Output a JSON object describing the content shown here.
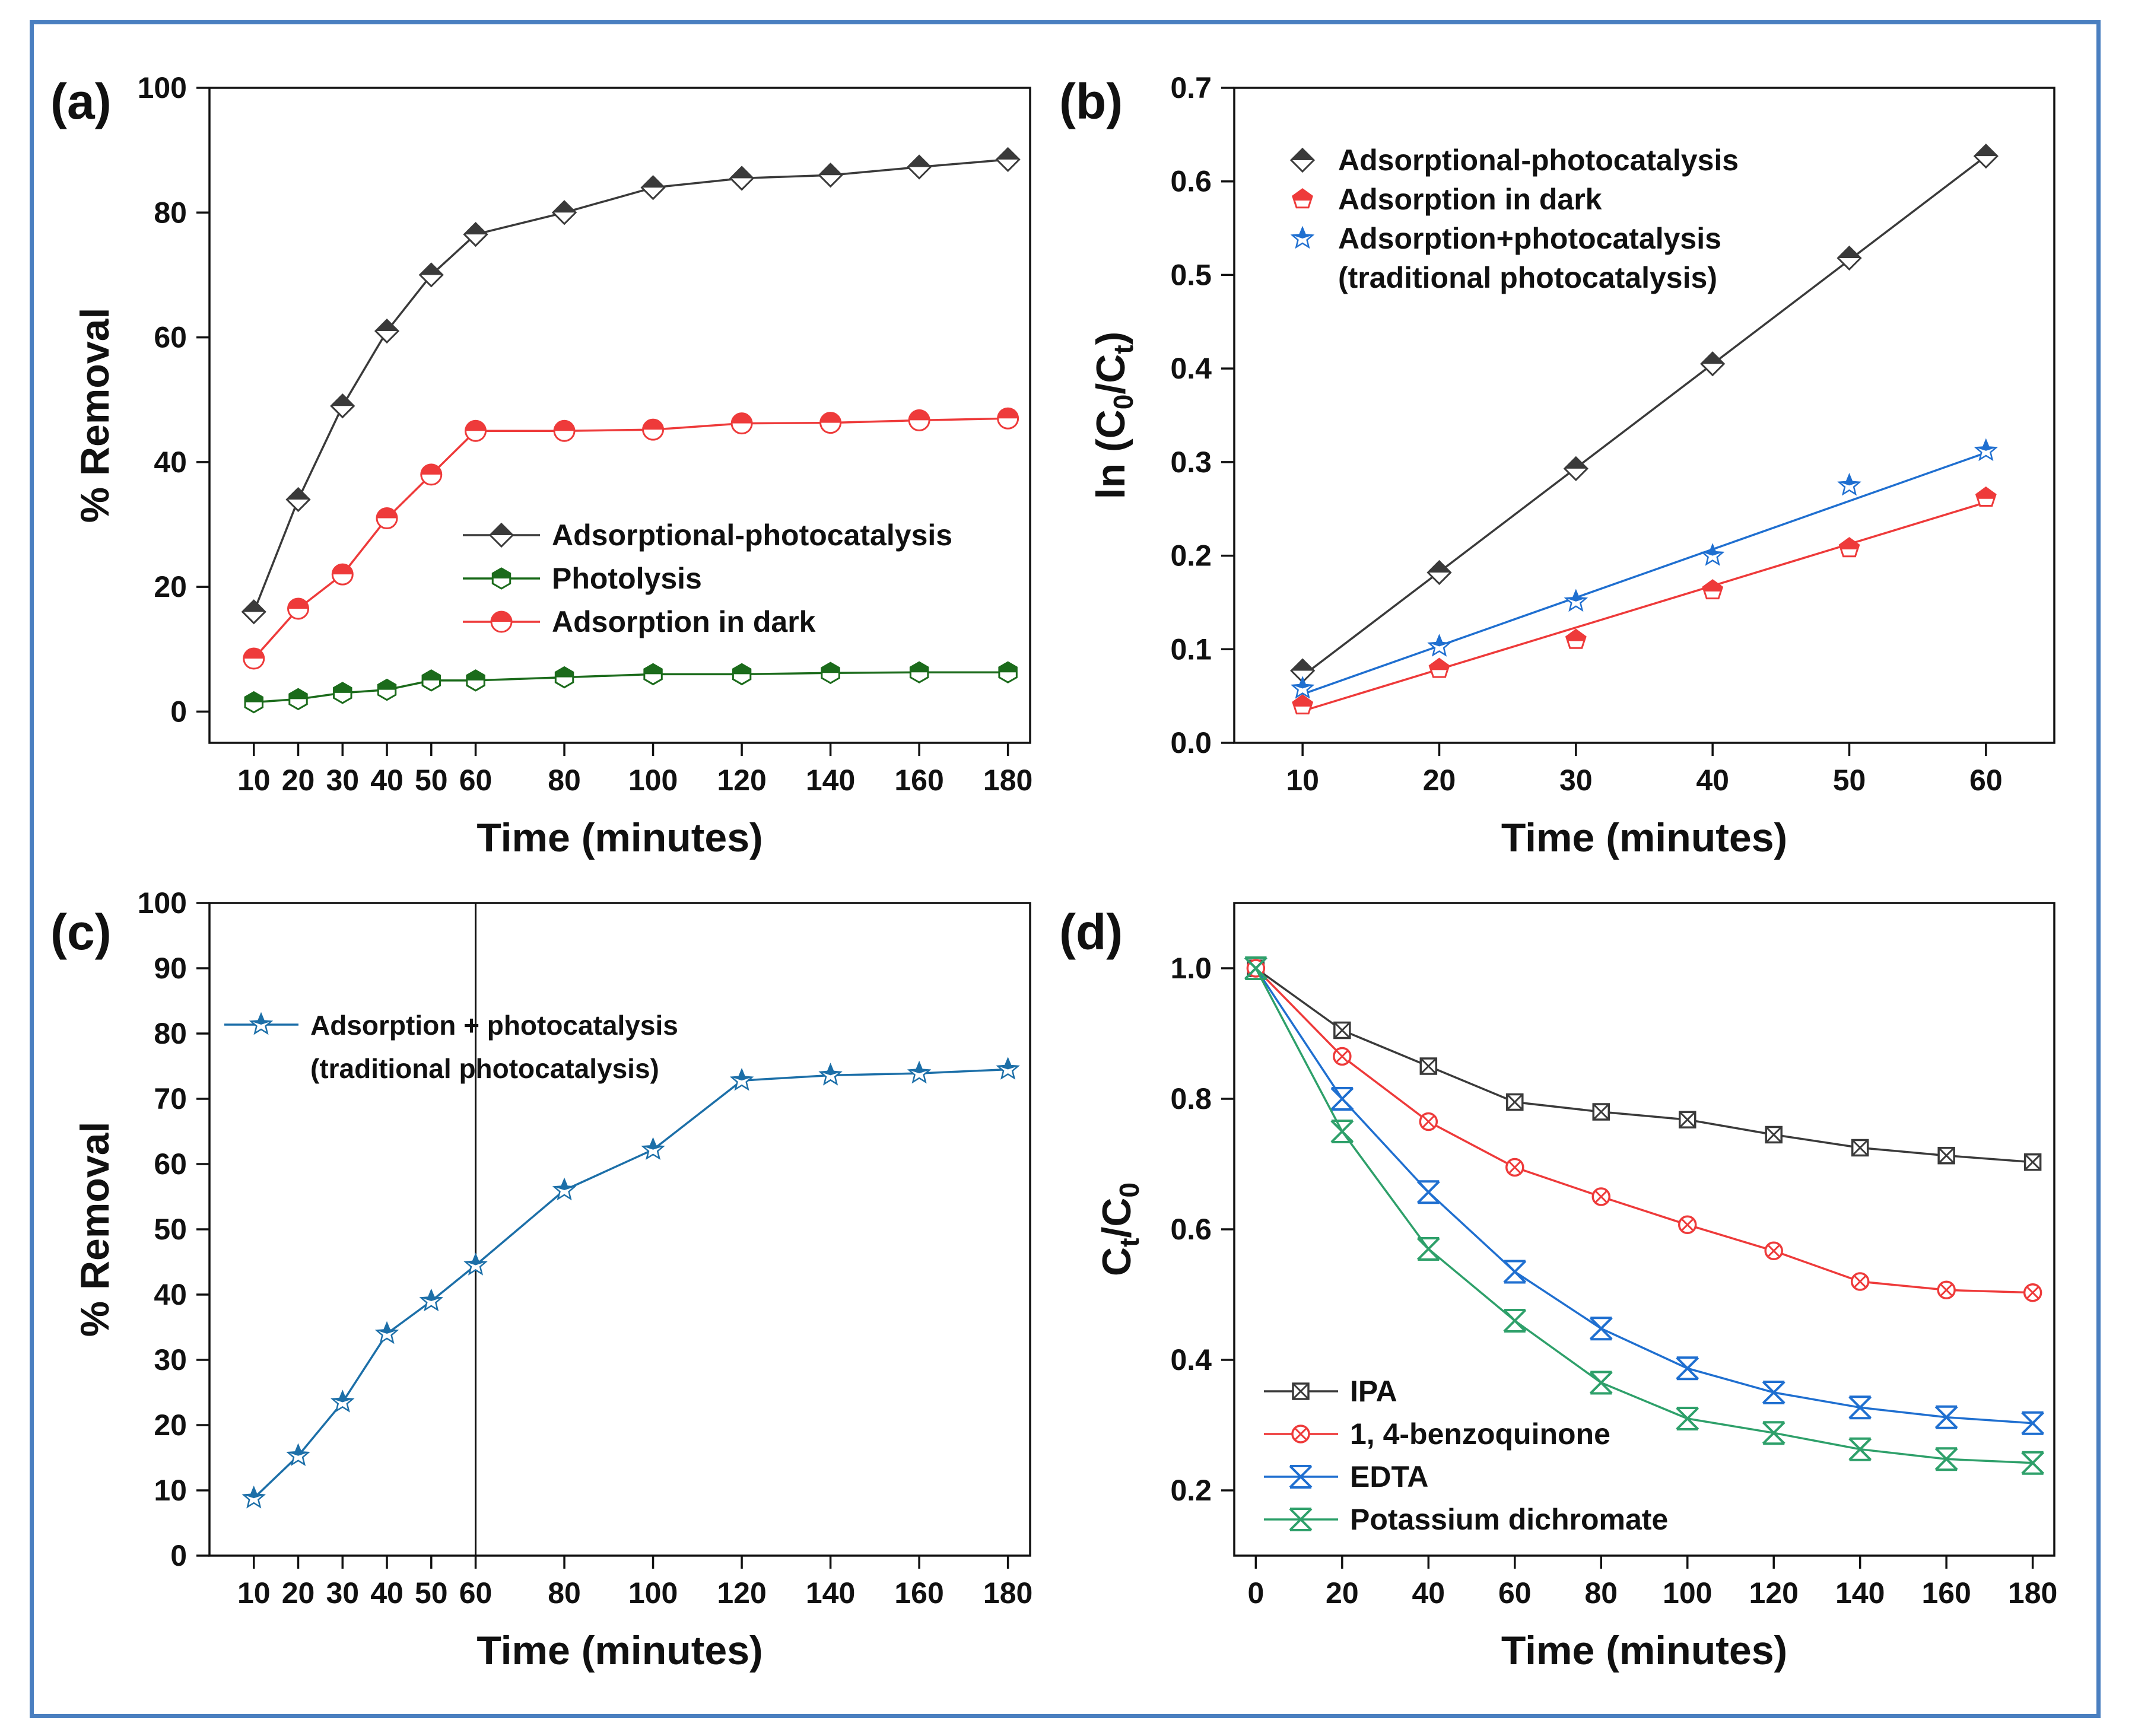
{
  "colors": {
    "frame": "#4a7fc0",
    "gray": "#3a3a3a",
    "green": "#1b6b1b",
    "red": "#ee3a3a",
    "blue": "#1f6fd0",
    "teal": "#1c6fa8",
    "sea_green": "#2ea06a"
  },
  "chart_data": [
    {
      "panel_label": "(a)",
      "type": "line",
      "xlabel": "Time (minutes)",
      "ylabel": "% Removal",
      "x": [
        10,
        20,
        30,
        40,
        50,
        60,
        80,
        100,
        120,
        140,
        160,
        180
      ],
      "x_tick_labels": [
        "10",
        "20",
        "30",
        "40",
        "50",
        "60",
        "80",
        "100",
        "120",
        "140",
        "160",
        "180"
      ],
      "y_ticks": [
        "0",
        "20",
        "40",
        "60",
        "80",
        "100"
      ],
      "xlim": [
        0,
        185
      ],
      "ylim": [
        -5,
        100
      ],
      "legend_position": "center-right",
      "series": [
        {
          "name": "Adsorptional-photocatalysis",
          "color": "#3a3a3a",
          "marker": "diamond",
          "values": [
            16,
            34,
            49,
            61,
            70,
            76.5,
            80,
            84,
            85.5,
            86,
            87.3,
            88.5
          ]
        },
        {
          "name": "Photolysis",
          "color": "#1b6b1b",
          "marker": "hexagon",
          "values": [
            1.5,
            2,
            3,
            3.5,
            5,
            5,
            5.5,
            6,
            6,
            6.2,
            6.3,
            6.3
          ]
        },
        {
          "name": "Adsorption in dark",
          "color": "#ee3a3a",
          "marker": "circle",
          "values": [
            8.5,
            16.5,
            22,
            31,
            38,
            45,
            45,
            45.2,
            46.2,
            46.3,
            46.7,
            47
          ]
        }
      ]
    },
    {
      "panel_label": "(b)",
      "type": "scatter",
      "xlabel": "Time (minutes)",
      "ylabel": "ln (C0/Ct)",
      "x": [
        10,
        20,
        30,
        40,
        50,
        60
      ],
      "x_tick_labels": [
        "10",
        "20",
        "30",
        "40",
        "50",
        "60"
      ],
      "y_ticks": [
        "0.0",
        "0.1",
        "0.2",
        "0.3",
        "0.4",
        "0.5",
        "0.6",
        "0.7"
      ],
      "xlim": [
        5,
        65
      ],
      "ylim": [
        0,
        0.7
      ],
      "legend_position": "top-left",
      "series": [
        {
          "name": "Adsorptional-photocatalysis",
          "color": "#3a3a3a",
          "marker": "diamond",
          "values": [
            0.077,
            0.182,
            0.293,
            0.405,
            0.518,
            0.627
          ],
          "fit": [
            0.0715,
            0.627
          ]
        },
        {
          "name": "Adsorption in dark",
          "color": "#ee3a3a",
          "marker": "pentagon",
          "values": [
            0.04,
            0.079,
            0.11,
            0.163,
            0.208,
            0.262
          ],
          "fit": [
            0.034,
            0.257
          ]
        },
        {
          "name": "Adsorption+photocatalysis",
          "name_line2": "(traditional photocatalysis)",
          "color": "#1f6fd0",
          "marker": "star",
          "values": [
            0.058,
            0.103,
            0.151,
            0.2,
            0.275,
            0.312
          ],
          "fit": [
            0.052,
            0.31
          ]
        }
      ]
    },
    {
      "panel_label": "(c)",
      "type": "line",
      "xlabel": "Time (minutes)",
      "ylabel": "% Removal",
      "x": [
        10,
        20,
        30,
        40,
        50,
        60,
        80,
        100,
        120,
        140,
        160,
        180
      ],
      "x_tick_labels": [
        "10",
        "20",
        "30",
        "40",
        "50",
        "60",
        "80",
        "100",
        "120",
        "140",
        "160",
        "180"
      ],
      "y_ticks": [
        "0",
        "10",
        "20",
        "30",
        "40",
        "50",
        "60",
        "70",
        "80",
        "90",
        "100"
      ],
      "xlim": [
        0,
        185
      ],
      "ylim": [
        0,
        100
      ],
      "vline_x": 60,
      "legend_position": "top-left",
      "series": [
        {
          "name": "Adsorption + photocatalysis",
          "name_line2": "(traditional photocatalysis)",
          "color": "#1c6fa8",
          "marker": "star",
          "values": [
            8.8,
            15.3,
            23.5,
            34,
            39,
            44.5,
            56,
            62.2,
            72.8,
            73.6,
            73.9,
            74.5
          ]
        }
      ]
    },
    {
      "panel_label": "(d)",
      "type": "line",
      "xlabel": "Time (minutes)",
      "ylabel": "Ct/C0",
      "x": [
        0,
        20,
        40,
        60,
        80,
        100,
        120,
        140,
        160,
        180
      ],
      "x_tick_labels": [
        "0",
        "20",
        "40",
        "60",
        "80",
        "100",
        "120",
        "140",
        "160",
        "180"
      ],
      "y_ticks": [
        "0.2",
        "0.4",
        "0.6",
        "0.8",
        "1.0"
      ],
      "xlim": [
        -5,
        185
      ],
      "ylim": [
        0.1,
        1.1
      ],
      "legend_position": "bottom-left",
      "series": [
        {
          "name": "IPA",
          "color": "#3a3a3a",
          "marker": "boxed-x",
          "values": [
            1.0,
            0.905,
            0.85,
            0.795,
            0.78,
            0.768,
            0.745,
            0.725,
            0.713,
            0.703
          ]
        },
        {
          "name": "1, 4-benzoquinone",
          "color": "#ee3a3a",
          "marker": "circled-x",
          "values": [
            1.0,
            0.865,
            0.765,
            0.695,
            0.65,
            0.607,
            0.567,
            0.52,
            0.507,
            0.503
          ]
        },
        {
          "name": "EDTA",
          "color": "#1f6fd0",
          "marker": "hourglass-x",
          "values": [
            1.0,
            0.8,
            0.657,
            0.535,
            0.448,
            0.387,
            0.35,
            0.327,
            0.312,
            0.303
          ]
        },
        {
          "name": "Potassium dichromate",
          "color": "#2ea06a",
          "marker": "hourglass-x",
          "values": [
            1.0,
            0.75,
            0.57,
            0.46,
            0.365,
            0.31,
            0.288,
            0.263,
            0.248,
            0.242
          ]
        }
      ]
    }
  ]
}
